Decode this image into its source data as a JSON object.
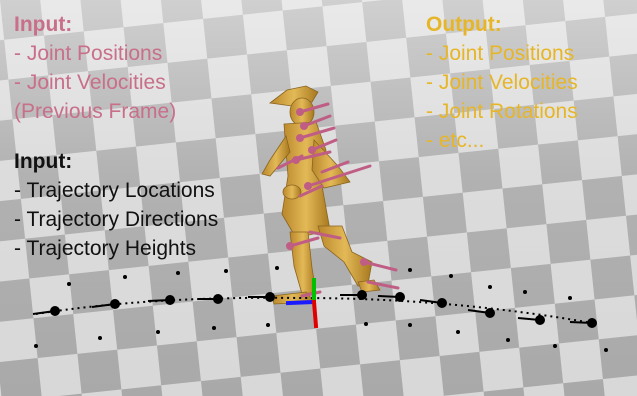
{
  "panels": {
    "previous": {
      "heading": "Input:",
      "items": [
        "- Joint Positions",
        "- Joint Velocities",
        "(Previous Frame)"
      ],
      "color": "#c86f8a"
    },
    "output": {
      "heading": "Output:",
      "items": [
        "- Joint Positions",
        "- Joint Velocities",
        "- Joint Rotations",
        "- etc..."
      ],
      "color": "#e6b628"
    },
    "trajectory": {
      "heading": "Input:",
      "items": [
        "- Trajectory Locations",
        "- Trajectory Directions",
        "- Trajectory Heights"
      ],
      "color": "#111111"
    }
  },
  "scene": {
    "floor_light": "#d9d9d9",
    "floor_dark": "#a6a6a6",
    "character_color": "#d7aa45",
    "joint_velocity_color": "#c05d85",
    "trajectory_color": "#000000",
    "axis_colors": {
      "x": "#1a1aff",
      "y": "#00c000",
      "z": "#e00000"
    }
  }
}
